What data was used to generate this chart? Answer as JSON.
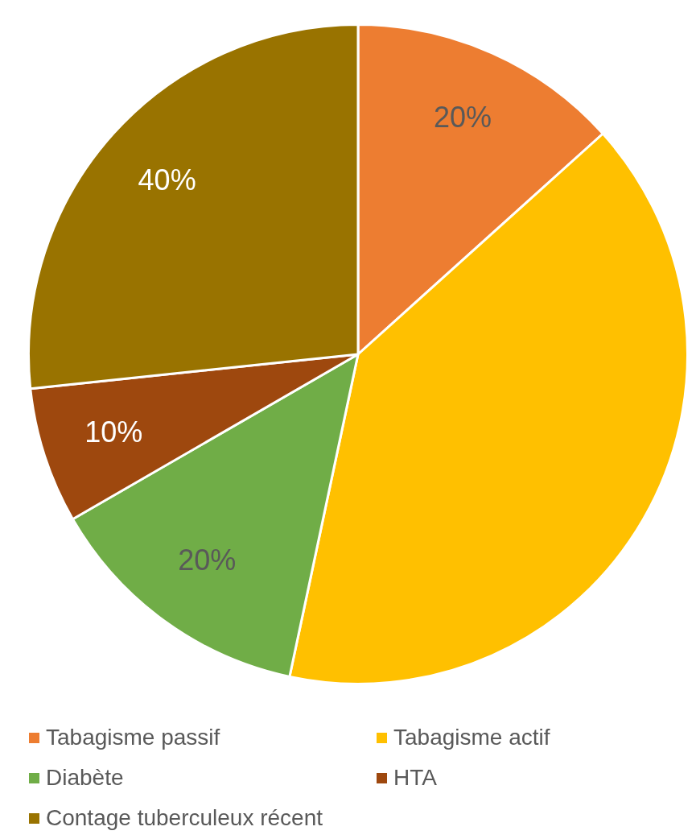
{
  "chart_data": {
    "type": "pie",
    "categories": [
      "Tabagisme passif",
      "Tabagisme actif",
      "Diabète",
      "HTA",
      "Contage tuberculeux récent"
    ],
    "values": [
      20,
      60,
      20,
      10,
      40
    ],
    "value_labels": [
      "20%",
      null,
      "20%",
      "10%",
      "40%"
    ],
    "colors": [
      "#ed7d31",
      "#ffc000",
      "#70ad47",
      "#9e480e",
      "#997300"
    ],
    "legend": "bottom"
  }
}
